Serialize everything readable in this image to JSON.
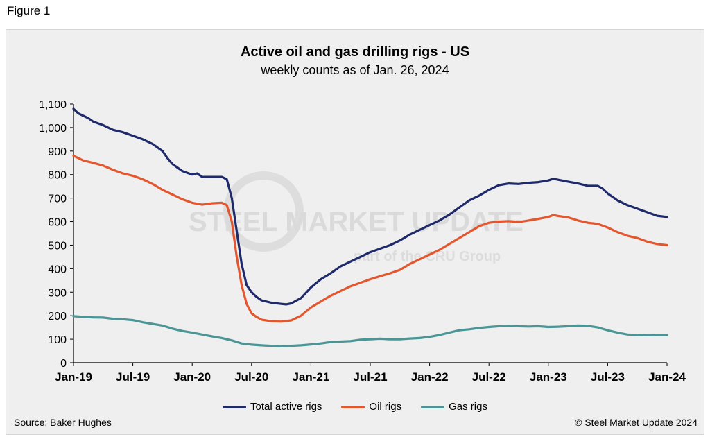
{
  "figure_label": "Figure 1",
  "source": "Source: Baker Hughes",
  "copyright": "© Steel Market Update 2024",
  "watermark": {
    "brand": "STEEL MARKET UPDATE",
    "tagline": "part of the CRU Group"
  },
  "chart_data": {
    "type": "line",
    "title": "Active oil and gas drilling rigs - US",
    "subtitle": "weekly counts as of Jan. 26, 2024",
    "xlabel": "",
    "ylabel": "",
    "ylim": [
      0,
      1100
    ],
    "yticks": [
      0,
      100,
      200,
      300,
      400,
      500,
      600,
      700,
      800,
      900,
      1000,
      1100
    ],
    "ytick_labels": [
      "0",
      "100",
      "200",
      "300",
      "400",
      "500",
      "600",
      "700",
      "800",
      "900",
      "1,000",
      "1,100"
    ],
    "xlim": [
      0,
      60
    ],
    "xticks": [
      0,
      6,
      12,
      18,
      24,
      30,
      36,
      42,
      48,
      54,
      60
    ],
    "xtick_labels": [
      "Jan-19",
      "Jul-19",
      "Jan-20",
      "Jul-20",
      "Jan-21",
      "Jul-21",
      "Jan-22",
      "Jul-22",
      "Jan-23",
      "Jul-23",
      "Jan-24"
    ],
    "x_unit": "months since Jan-19",
    "grid": false,
    "legend_position": "bottom",
    "series": [
      {
        "name": "Total active rigs",
        "color": "#1f2a6b",
        "points": [
          [
            0,
            1080
          ],
          [
            0.5,
            1060
          ],
          [
            1,
            1050
          ],
          [
            1.5,
            1040
          ],
          [
            2,
            1025
          ],
          [
            3,
            1010
          ],
          [
            3.5,
            1000
          ],
          [
            4,
            990
          ],
          [
            5,
            980
          ],
          [
            6,
            965
          ],
          [
            7,
            950
          ],
          [
            8,
            930
          ],
          [
            9,
            900
          ],
          [
            9.5,
            870
          ],
          [
            10,
            845
          ],
          [
            11,
            815
          ],
          [
            12,
            800
          ],
          [
            12.5,
            805
          ],
          [
            13,
            790
          ],
          [
            14,
            790
          ],
          [
            15,
            790
          ],
          [
            15.5,
            780
          ],
          [
            16,
            700
          ],
          [
            16.5,
            560
          ],
          [
            17,
            420
          ],
          [
            17.5,
            330
          ],
          [
            18,
            300
          ],
          [
            18.5,
            280
          ],
          [
            19,
            265
          ],
          [
            20,
            255
          ],
          [
            21,
            250
          ],
          [
            21.5,
            248
          ],
          [
            22,
            252
          ],
          [
            23,
            275
          ],
          [
            24,
            320
          ],
          [
            25,
            355
          ],
          [
            26,
            380
          ],
          [
            27,
            410
          ],
          [
            28,
            430
          ],
          [
            29,
            450
          ],
          [
            30,
            470
          ],
          [
            31,
            485
          ],
          [
            32,
            500
          ],
          [
            33,
            520
          ],
          [
            34,
            545
          ],
          [
            35,
            565
          ],
          [
            36,
            585
          ],
          [
            37,
            605
          ],
          [
            38,
            630
          ],
          [
            39,
            660
          ],
          [
            40,
            690
          ],
          [
            41,
            710
          ],
          [
            42,
            735
          ],
          [
            43,
            755
          ],
          [
            44,
            762
          ],
          [
            45,
            760
          ],
          [
            46,
            765
          ],
          [
            47,
            768
          ],
          [
            48,
            775
          ],
          [
            48.5,
            782
          ],
          [
            49,
            778
          ],
          [
            50,
            770
          ],
          [
            51,
            762
          ],
          [
            52,
            752
          ],
          [
            53,
            752
          ],
          [
            53.5,
            740
          ],
          [
            54,
            720
          ],
          [
            55,
            690
          ],
          [
            56,
            670
          ],
          [
            57,
            655
          ],
          [
            58,
            640
          ],
          [
            59,
            625
          ],
          [
            60,
            620
          ]
        ]
      },
      {
        "name": "Oil rigs",
        "color": "#e4572e",
        "points": [
          [
            0,
            880
          ],
          [
            1,
            860
          ],
          [
            2,
            850
          ],
          [
            3,
            838
          ],
          [
            4,
            820
          ],
          [
            5,
            805
          ],
          [
            6,
            795
          ],
          [
            7,
            780
          ],
          [
            8,
            760
          ],
          [
            9,
            735
          ],
          [
            10,
            715
          ],
          [
            11,
            695
          ],
          [
            12,
            680
          ],
          [
            13,
            672
          ],
          [
            14,
            678
          ],
          [
            15,
            680
          ],
          [
            15.5,
            670
          ],
          [
            16,
            600
          ],
          [
            16.5,
            450
          ],
          [
            17,
            330
          ],
          [
            17.5,
            250
          ],
          [
            18,
            210
          ],
          [
            18.5,
            195
          ],
          [
            19,
            183
          ],
          [
            20,
            176
          ],
          [
            21,
            175
          ],
          [
            22,
            180
          ],
          [
            23,
            200
          ],
          [
            24,
            235
          ],
          [
            25,
            260
          ],
          [
            26,
            285
          ],
          [
            27,
            305
          ],
          [
            28,
            325
          ],
          [
            29,
            340
          ],
          [
            30,
            355
          ],
          [
            31,
            368
          ],
          [
            32,
            380
          ],
          [
            33,
            395
          ],
          [
            34,
            420
          ],
          [
            35,
            440
          ],
          [
            36,
            460
          ],
          [
            37,
            480
          ],
          [
            38,
            505
          ],
          [
            39,
            530
          ],
          [
            40,
            555
          ],
          [
            41,
            580
          ],
          [
            42,
            595
          ],
          [
            43,
            600
          ],
          [
            44,
            602
          ],
          [
            45,
            598
          ],
          [
            46,
            605
          ],
          [
            47,
            612
          ],
          [
            48,
            620
          ],
          [
            48.5,
            628
          ],
          [
            49,
            624
          ],
          [
            50,
            618
          ],
          [
            51,
            605
          ],
          [
            52,
            595
          ],
          [
            53,
            590
          ],
          [
            54,
            575
          ],
          [
            55,
            555
          ],
          [
            56,
            540
          ],
          [
            57,
            530
          ],
          [
            58,
            515
          ],
          [
            59,
            505
          ],
          [
            60,
            500
          ]
        ]
      },
      {
        "name": "Gas rigs",
        "color": "#4c9596",
        "points": [
          [
            0,
            198
          ],
          [
            1,
            195
          ],
          [
            2,
            193
          ],
          [
            3,
            192
          ],
          [
            4,
            187
          ],
          [
            5,
            185
          ],
          [
            6,
            181
          ],
          [
            7,
            172
          ],
          [
            8,
            165
          ],
          [
            9,
            158
          ],
          [
            10,
            145
          ],
          [
            11,
            135
          ],
          [
            12,
            128
          ],
          [
            13,
            120
          ],
          [
            14,
            112
          ],
          [
            15,
            105
          ],
          [
            16,
            95
          ],
          [
            17,
            82
          ],
          [
            18,
            77
          ],
          [
            19,
            74
          ],
          [
            20,
            72
          ],
          [
            21,
            70
          ],
          [
            22,
            72
          ],
          [
            23,
            74
          ],
          [
            24,
            78
          ],
          [
            25,
            82
          ],
          [
            26,
            88
          ],
          [
            27,
            90
          ],
          [
            28,
            92
          ],
          [
            29,
            98
          ],
          [
            30,
            100
          ],
          [
            31,
            102
          ],
          [
            32,
            100
          ],
          [
            33,
            100
          ],
          [
            34,
            103
          ],
          [
            35,
            105
          ],
          [
            36,
            110
          ],
          [
            37,
            118
          ],
          [
            38,
            128
          ],
          [
            39,
            138
          ],
          [
            40,
            142
          ],
          [
            41,
            148
          ],
          [
            42,
            152
          ],
          [
            43,
            155
          ],
          [
            44,
            157
          ],
          [
            45,
            155
          ],
          [
            46,
            154
          ],
          [
            47,
            155
          ],
          [
            48,
            152
          ],
          [
            49,
            153
          ],
          [
            50,
            155
          ],
          [
            51,
            158
          ],
          [
            52,
            157
          ],
          [
            53,
            150
          ],
          [
            54,
            138
          ],
          [
            55,
            128
          ],
          [
            56,
            120
          ],
          [
            57,
            118
          ],
          [
            58,
            117
          ],
          [
            59,
            118
          ],
          [
            60,
            118
          ]
        ]
      }
    ]
  }
}
